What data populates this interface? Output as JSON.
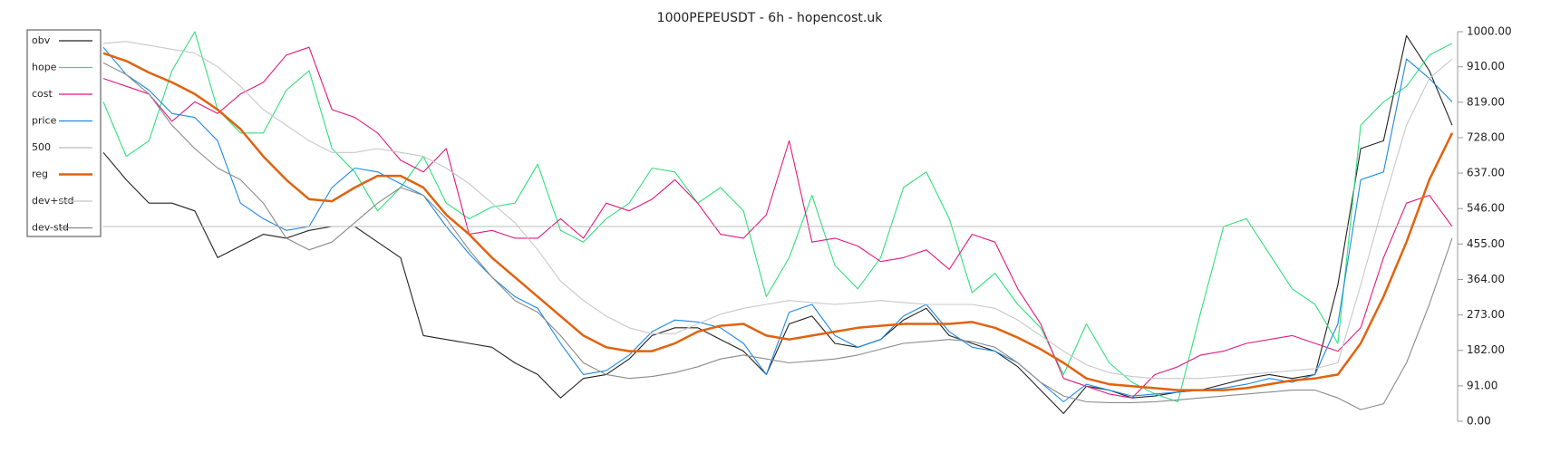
{
  "chart_data": {
    "type": "line",
    "title": "1000PEPEUSDT - 6h - hopencost.uk",
    "ylim": [
      0,
      1000
    ],
    "yticks": [
      {
        "value": 0,
        "label": "0.00"
      },
      {
        "value": 91,
        "label": "91.00"
      },
      {
        "value": 182,
        "label": "182.00"
      },
      {
        "value": 273,
        "label": "273.00"
      },
      {
        "value": 364,
        "label": "364.00"
      },
      {
        "value": 455,
        "label": "455.00"
      },
      {
        "value": 546,
        "label": "546.00"
      },
      {
        "value": 637,
        "label": "637.00"
      },
      {
        "value": 728,
        "label": "728.00"
      },
      {
        "value": 819,
        "label": "819.00"
      },
      {
        "value": 910,
        "label": "910.00"
      },
      {
        "value": 1000,
        "label": "1000.00"
      }
    ],
    "grid": false,
    "legend": "top-left",
    "series": [
      {
        "name": "obv",
        "color": "#222222",
        "values": [
          690,
          620,
          560,
          560,
          540,
          420,
          450,
          480,
          470,
          490,
          500,
          500,
          460,
          420,
          220,
          210,
          200,
          190,
          150,
          120,
          60,
          110,
          120,
          160,
          220,
          240,
          240,
          210,
          180,
          120,
          250,
          270,
          200,
          190,
          210,
          260,
          290,
          220,
          200,
          180,
          140,
          80,
          20,
          90,
          80,
          60,
          65,
          75,
          80,
          95,
          110,
          120,
          110,
          120,
          350,
          700,
          720,
          990,
          900,
          760
        ]
      },
      {
        "name": "hope",
        "color": "#2ee07a",
        "values": [
          820,
          680,
          720,
          900,
          1000,
          800,
          740,
          740,
          850,
          900,
          700,
          640,
          540,
          600,
          680,
          560,
          520,
          550,
          560,
          660,
          490,
          460,
          520,
          560,
          650,
          640,
          560,
          600,
          540,
          320,
          420,
          580,
          400,
          340,
          420,
          600,
          640,
          520,
          330,
          380,
          300,
          240,
          120,
          250,
          150,
          100,
          70,
          50,
          280,
          500,
          520,
          430,
          340,
          300,
          200,
          760,
          820,
          860,
          940,
          970
        ]
      },
      {
        "name": "cost",
        "color": "#e3197f",
        "values": [
          880,
          860,
          840,
          770,
          820,
          790,
          840,
          870,
          940,
          960,
          800,
          780,
          740,
          670,
          640,
          700,
          480,
          490,
          470,
          470,
          520,
          470,
          560,
          540,
          570,
          620,
          560,
          480,
          470,
          530,
          720,
          460,
          470,
          450,
          410,
          420,
          440,
          390,
          480,
          460,
          340,
          250,
          110,
          90,
          70,
          60,
          120,
          140,
          170,
          180,
          200,
          210,
          220,
          200,
          180,
          240,
          420,
          560,
          580,
          500
        ]
      },
      {
        "name": "price",
        "color": "#1e88e5",
        "values": [
          960,
          890,
          850,
          790,
          780,
          720,
          560,
          520,
          490,
          500,
          600,
          650,
          640,
          610,
          580,
          500,
          430,
          370,
          320,
          290,
          200,
          120,
          130,
          170,
          230,
          260,
          255,
          240,
          200,
          120,
          280,
          300,
          220,
          190,
          210,
          270,
          300,
          230,
          190,
          180,
          150,
          100,
          50,
          95,
          80,
          65,
          70,
          75,
          80,
          85,
          95,
          110,
          100,
          120,
          250,
          620,
          640,
          930,
          880,
          820
        ]
      },
      {
        "name": "500",
        "color": "#bbbbbb",
        "values": [
          500,
          500,
          500,
          500,
          500,
          500,
          500,
          500,
          500,
          500,
          500,
          500,
          500,
          500,
          500,
          500,
          500,
          500,
          500,
          500,
          500,
          500,
          500,
          500,
          500,
          500,
          500,
          500,
          500,
          500,
          500,
          500,
          500,
          500,
          500,
          500,
          500,
          500,
          500,
          500,
          500,
          500,
          500,
          500,
          500,
          500,
          500,
          500,
          500,
          500,
          500,
          500,
          500,
          500,
          500,
          500,
          500,
          500,
          500,
          500
        ]
      },
      {
        "name": "reg",
        "color": "#e0620f",
        "values": [
          945,
          925,
          895,
          870,
          840,
          800,
          750,
          680,
          620,
          570,
          565,
          600,
          630,
          630,
          600,
          530,
          480,
          420,
          370,
          320,
          270,
          220,
          190,
          180,
          180,
          200,
          230,
          245,
          250,
          220,
          210,
          220,
          230,
          240,
          245,
          250,
          250,
          250,
          255,
          240,
          215,
          185,
          150,
          110,
          95,
          90,
          85,
          80,
          80,
          80,
          85,
          95,
          105,
          110,
          120,
          200,
          320,
          460,
          620,
          740
        ]
      },
      {
        "name": "dev+std",
        "color": "#c8c8c8",
        "values": [
          970,
          975,
          965,
          955,
          945,
          910,
          860,
          800,
          760,
          720,
          690,
          690,
          700,
          690,
          680,
          650,
          610,
          560,
          510,
          440,
          360,
          310,
          270,
          240,
          225,
          225,
          250,
          275,
          290,
          300,
          310,
          305,
          300,
          305,
          310,
          305,
          300,
          300,
          300,
          290,
          260,
          220,
          180,
          145,
          125,
          115,
          110,
          110,
          110,
          115,
          120,
          125,
          130,
          135,
          150,
          350,
          560,
          760,
          880,
          930
        ]
      },
      {
        "name": "dev-std",
        "color": "#8a8a8a",
        "values": [
          920,
          890,
          840,
          760,
          700,
          650,
          620,
          560,
          470,
          440,
          460,
          510,
          560,
          600,
          580,
          520,
          440,
          370,
          310,
          280,
          220,
          150,
          120,
          110,
          115,
          125,
          140,
          160,
          170,
          160,
          150,
          155,
          160,
          170,
          185,
          200,
          205,
          210,
          205,
          190,
          150,
          100,
          65,
          50,
          48,
          48,
          50,
          55,
          60,
          65,
          70,
          75,
          80,
          80,
          60,
          30,
          45,
          150,
          300,
          470
        ]
      }
    ]
  }
}
